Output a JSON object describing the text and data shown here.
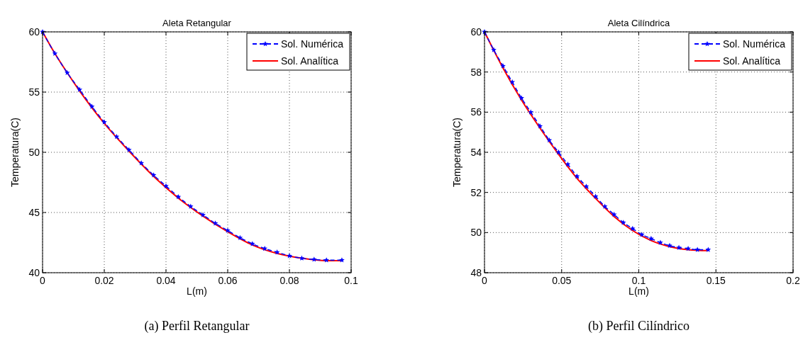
{
  "chart_data": [
    {
      "type": "line",
      "title": "Aleta Retangular",
      "xlabel": "L(m)",
      "ylabel": "Temperatura(C)",
      "xlim": [
        0,
        0.1
      ],
      "ylim": [
        40,
        60
      ],
      "xticks": [
        0,
        0.02,
        0.04,
        0.06,
        0.08,
        0.1
      ],
      "yticks": [
        40,
        45,
        50,
        55,
        60
      ],
      "grid": true,
      "legend": "top right",
      "annotations": [
        "(a) Perfil Retangular"
      ],
      "series": [
        {
          "name": "Sol. Numérica",
          "color": "#0000ff",
          "line_style": "dashed",
          "marker": "star",
          "x": [
            0,
            0.004,
            0.008,
            0.012,
            0.016,
            0.02,
            0.024,
            0.028,
            0.032,
            0.036,
            0.04,
            0.044,
            0.048,
            0.052,
            0.056,
            0.06,
            0.064,
            0.068,
            0.072,
            0.076,
            0.08,
            0.084,
            0.088,
            0.092,
            0.097
          ],
          "values": [
            60,
            58.2,
            56.6,
            55.2,
            53.8,
            52.5,
            51.3,
            50.2,
            49.1,
            48.1,
            47.2,
            46.3,
            45.5,
            44.8,
            44.1,
            43.5,
            42.9,
            42.4,
            42.0,
            41.7,
            41.4,
            41.2,
            41.1,
            41.05,
            41.05
          ]
        },
        {
          "name": "Sol. Analítica",
          "color": "#ff0000",
          "line_style": "solid",
          "marker": "none",
          "x": [
            0,
            0.004,
            0.008,
            0.012,
            0.016,
            0.02,
            0.028,
            0.036,
            0.044,
            0.052,
            0.06,
            0.068,
            0.076,
            0.084,
            0.092,
            0.097
          ],
          "values": [
            60,
            58.2,
            56.6,
            55.1,
            53.7,
            52.4,
            50.1,
            48.0,
            46.2,
            44.7,
            43.4,
            42.3,
            41.6,
            41.2,
            41.0,
            41.0
          ]
        }
      ]
    },
    {
      "type": "line",
      "title": "Aleta Cilíndrica",
      "xlabel": "L(m)",
      "ylabel": "Temperatura(C)",
      "xlim": [
        0,
        0.2
      ],
      "ylim": [
        48,
        60
      ],
      "xticks": [
        0,
        0.05,
        0.1,
        0.15,
        0.2
      ],
      "yticks": [
        48,
        50,
        52,
        54,
        56,
        58,
        60
      ],
      "grid": true,
      "legend": "top right",
      "annotations": [
        "(b) Perfil Cilíndrico"
      ],
      "series": [
        {
          "name": "Sol. Numérica",
          "color": "#0000ff",
          "line_style": "dashed",
          "marker": "star",
          "x": [
            0,
            0.006,
            0.012,
            0.018,
            0.024,
            0.03,
            0.036,
            0.042,
            0.048,
            0.054,
            0.06,
            0.066,
            0.072,
            0.078,
            0.084,
            0.09,
            0.096,
            0.102,
            0.108,
            0.114,
            0.12,
            0.126,
            0.132,
            0.138,
            0.145
          ],
          "values": [
            60,
            59.1,
            58.3,
            57.5,
            56.7,
            56.0,
            55.3,
            54.6,
            54.0,
            53.4,
            52.8,
            52.3,
            51.8,
            51.3,
            50.9,
            50.5,
            50.2,
            49.9,
            49.7,
            49.5,
            49.35,
            49.25,
            49.2,
            49.15,
            49.15
          ]
        },
        {
          "name": "Sol. Analítica",
          "color": "#ff0000",
          "line_style": "solid",
          "marker": "none",
          "x": [
            0,
            0.012,
            0.024,
            0.036,
            0.048,
            0.06,
            0.072,
            0.084,
            0.096,
            0.108,
            0.12,
            0.132,
            0.145
          ],
          "values": [
            60,
            58.2,
            56.6,
            55.2,
            53.9,
            52.7,
            51.7,
            50.8,
            50.1,
            49.6,
            49.3,
            49.15,
            49.1
          ]
        }
      ]
    }
  ]
}
